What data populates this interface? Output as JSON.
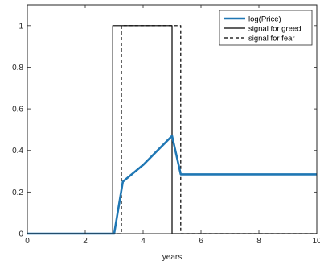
{
  "chart_data": {
    "type": "line",
    "title": "",
    "xlabel": "years",
    "ylabel": "",
    "xlim": [
      0,
      10
    ],
    "ylim": [
      0,
      1.1
    ],
    "x_ticks": [
      0,
      2,
      4,
      6,
      8,
      10
    ],
    "x_tick_labels": [
      "0",
      "2",
      "4",
      "6",
      "8",
      "10"
    ],
    "y_ticks": [
      0,
      0.2,
      0.4,
      0.6,
      0.8,
      1
    ],
    "y_tick_labels": [
      "0",
      "0.2",
      "0.4",
      "0.6",
      "0.8",
      "1"
    ],
    "grid": false,
    "legend_position": "top-right",
    "series": [
      {
        "name": "log(Price)",
        "style": "solid",
        "color": "#1f77b4",
        "x": [
          0,
          3.0,
          3.3,
          4.0,
          4.5,
          5.0,
          5.3,
          10
        ],
        "y": [
          0,
          0,
          0.25,
          0.33,
          0.4,
          0.47,
          0.285,
          0.285
        ]
      },
      {
        "name": "signal for greed",
        "style": "solid",
        "color": "#000000",
        "x": [
          0,
          2.95,
          2.95,
          5.0,
          5.0,
          10
        ],
        "y": [
          0,
          0,
          1,
          1,
          0,
          0
        ]
      },
      {
        "name": "signal for fear",
        "style": "dashed",
        "color": "#000000",
        "x": [
          0,
          3.25,
          3.25,
          5.3,
          5.3,
          10
        ],
        "y": [
          0,
          0,
          1,
          1,
          0,
          0
        ]
      }
    ]
  }
}
